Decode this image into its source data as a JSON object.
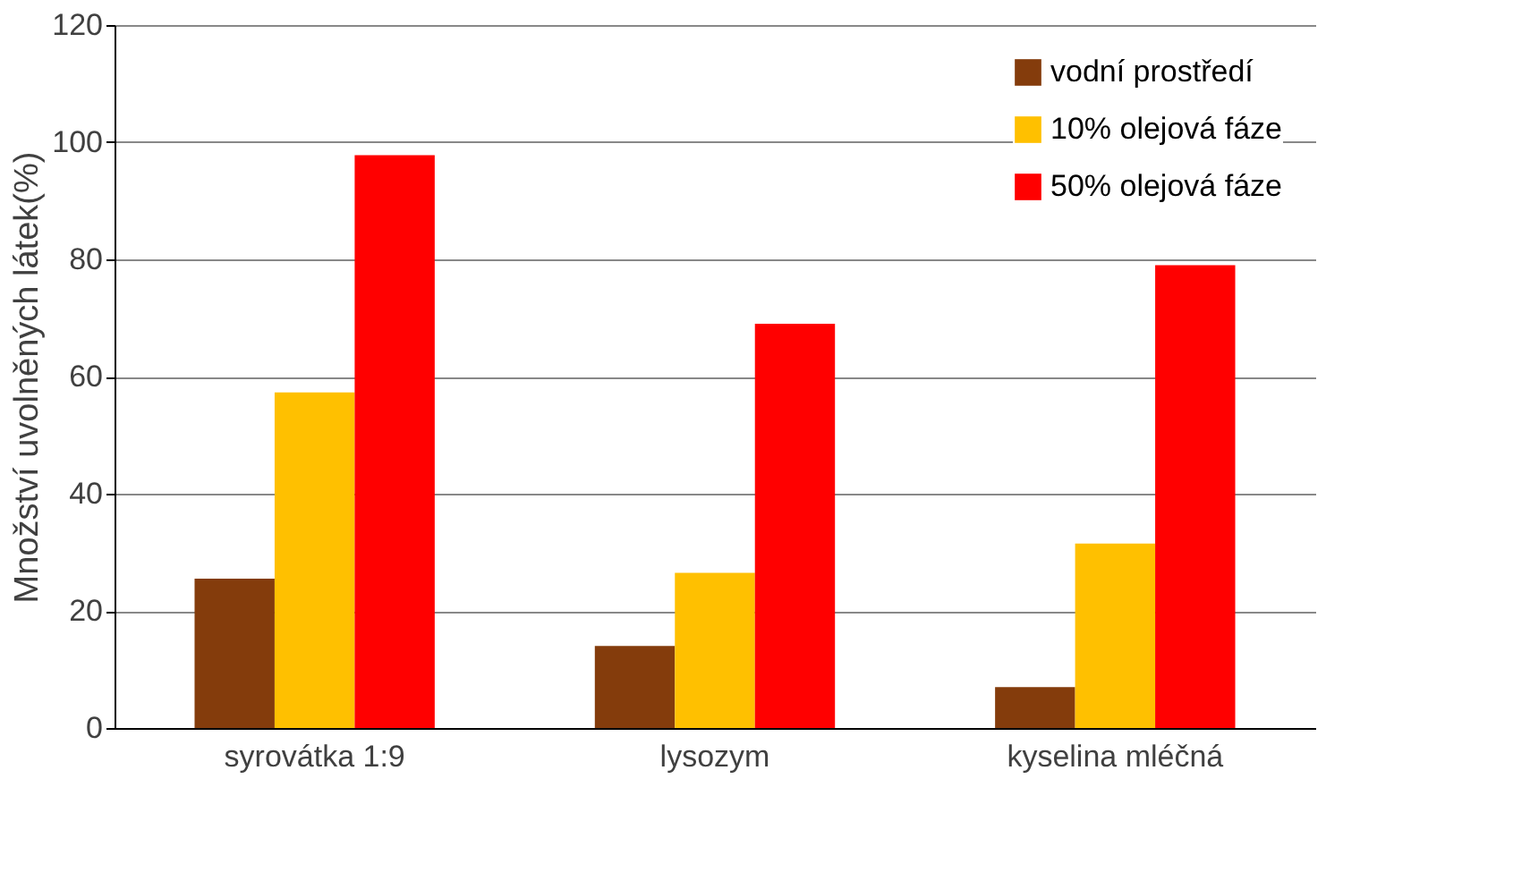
{
  "chart_data": {
    "type": "bar",
    "ylabel": "Množství uvolněných látek(%)",
    "categories": [
      "syrovátka 1:9",
      "lysozym",
      "kyselina mléčná"
    ],
    "series": [
      {
        "name": "vodní prostředí",
        "color": "#843c0c",
        "values": [
          25.5,
          14,
          7
        ]
      },
      {
        "name": "10% olejová fáze",
        "color": "#ffc000",
        "values": [
          57.3,
          26.5,
          31.5
        ]
      },
      {
        "name": "50% olejová fáze",
        "color": "#ff0000",
        "values": [
          97.8,
          69,
          79
        ]
      }
    ],
    "ylim": [
      0,
      120
    ],
    "yticks": [
      0,
      20,
      40,
      60,
      80,
      100,
      120
    ],
    "grid": "y",
    "legend": "top right"
  }
}
